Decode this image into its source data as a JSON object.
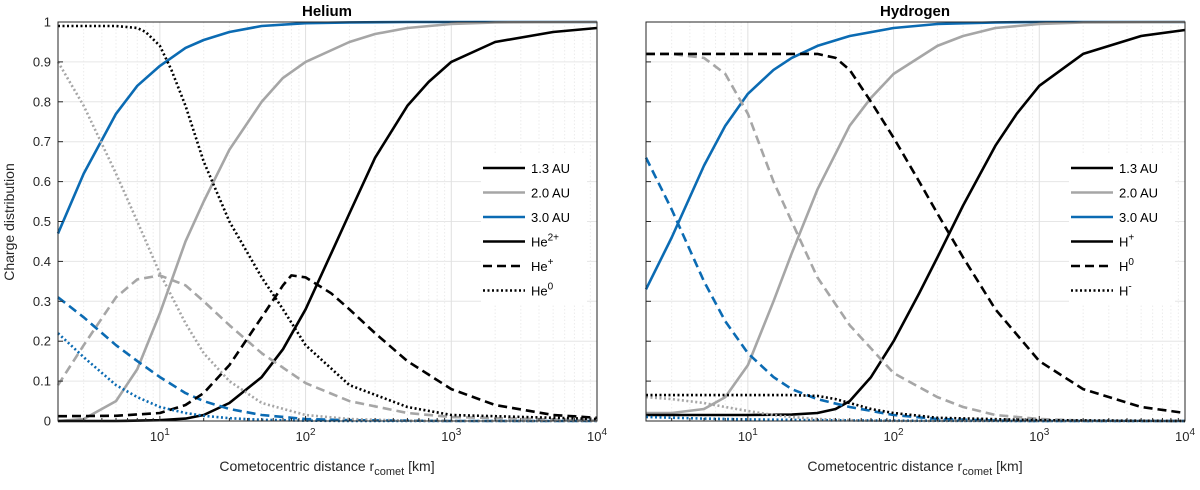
{
  "colors": {
    "1.3 AU": "#000000",
    "2.0 AU": "#a6a6a6",
    "3.0 AU": "#0b6bb3"
  },
  "chart_data": [
    {
      "type": "line",
      "title": "Helium",
      "xlabel": "Cometocentric distance r",
      "xlabel_sub": "comet",
      "xlabel_unit": "[km]",
      "ylabel": "Charge distribution",
      "xscale": "log",
      "xlim": [
        2,
        10000
      ],
      "ylim": [
        0,
        1
      ],
      "xticks": [
        {
          "base": "10",
          "exp": "1",
          "value": 10
        },
        {
          "base": "10",
          "exp": "2",
          "value": 100
        },
        {
          "base": "10",
          "exp": "3",
          "value": 1000
        },
        {
          "base": "10",
          "exp": "4",
          "value": 10000
        }
      ],
      "yticks": [
        "0",
        "0.1",
        "0.2",
        "0.3",
        "0.4",
        "0.5",
        "0.6",
        "0.7",
        "0.8",
        "0.9",
        "1"
      ],
      "grid": true,
      "legend_position": "right",
      "legend": [
        {
          "base": "1.3 AU",
          "sup": "",
          "color": "#000000",
          "style": "solid"
        },
        {
          "base": "2.0 AU",
          "sup": "",
          "color": "#a6a6a6",
          "style": "solid"
        },
        {
          "base": "3.0 AU",
          "sup": "",
          "color": "#0b6bb3",
          "style": "solid"
        },
        {
          "base": "He",
          "sup": "2+",
          "color": "#000000",
          "style": "solid"
        },
        {
          "base": "He",
          "sup": "+",
          "color": "#000000",
          "style": "dashed"
        },
        {
          "base": "He",
          "sup": "0",
          "color": "#000000",
          "style": "dotted"
        }
      ],
      "series": [
        {
          "name": "He2+ 3.0 AU",
          "color": "#0b6bb3",
          "style": "solid",
          "x": [
            2,
            3,
            5,
            7,
            10,
            15,
            20,
            30,
            50,
            100,
            200,
            500,
            1000,
            10000
          ],
          "y": [
            0.47,
            0.62,
            0.77,
            0.84,
            0.89,
            0.935,
            0.955,
            0.975,
            0.99,
            0.997,
            0.999,
            1,
            1,
            1
          ]
        },
        {
          "name": "He2+ 2.0 AU",
          "color": "#a6a6a6",
          "style": "solid",
          "x": [
            2,
            3,
            5,
            7,
            10,
            15,
            20,
            30,
            50,
            70,
            100,
            200,
            300,
            500,
            1000,
            2000,
            10000
          ],
          "y": [
            0,
            0.005,
            0.05,
            0.13,
            0.27,
            0.45,
            0.55,
            0.68,
            0.8,
            0.86,
            0.9,
            0.95,
            0.97,
            0.985,
            0.995,
            0.999,
            1
          ]
        },
        {
          "name": "He2+ 1.3 AU",
          "color": "#000000",
          "style": "solid",
          "x": [
            2,
            5,
            10,
            15,
            20,
            30,
            50,
            70,
            100,
            150,
            200,
            300,
            500,
            700,
            1000,
            2000,
            5000,
            10000
          ],
          "y": [
            0,
            0,
            0.002,
            0.006,
            0.015,
            0.045,
            0.11,
            0.18,
            0.28,
            0.42,
            0.52,
            0.66,
            0.79,
            0.85,
            0.9,
            0.95,
            0.975,
            0.985
          ]
        },
        {
          "name": "He+ 3.0 AU",
          "color": "#0b6bb3",
          "style": "dashed",
          "x": [
            2,
            3,
            5,
            7,
            10,
            15,
            20,
            30,
            50,
            100,
            200,
            500,
            1000,
            10000
          ],
          "y": [
            0.31,
            0.26,
            0.19,
            0.15,
            0.11,
            0.07,
            0.05,
            0.03,
            0.015,
            0.005,
            0.002,
            0.001,
            0,
            0
          ]
        },
        {
          "name": "He+ 2.0 AU",
          "color": "#a6a6a6",
          "style": "dashed",
          "x": [
            2,
            3,
            5,
            7,
            10,
            15,
            20,
            30,
            50,
            100,
            200,
            500,
            1000,
            10000
          ],
          "y": [
            0.09,
            0.19,
            0.31,
            0.355,
            0.365,
            0.34,
            0.3,
            0.24,
            0.17,
            0.095,
            0.05,
            0.02,
            0.01,
            0.001
          ]
        },
        {
          "name": "He+ 1.3 AU",
          "color": "#000000",
          "style": "dashed",
          "x": [
            2,
            5,
            10,
            15,
            20,
            30,
            50,
            70,
            80,
            100,
            150,
            200,
            300,
            500,
            1000,
            2000,
            5000,
            10000
          ],
          "y": [
            0.012,
            0.013,
            0.02,
            0.04,
            0.07,
            0.14,
            0.26,
            0.34,
            0.365,
            0.36,
            0.32,
            0.28,
            0.22,
            0.15,
            0.08,
            0.04,
            0.015,
            0.008
          ]
        },
        {
          "name": "He0 3.0 AU",
          "color": "#0b6bb3",
          "style": "dotted",
          "x": [
            2,
            3,
            5,
            7,
            10,
            15,
            20,
            30,
            50,
            100,
            200,
            1000,
            10000
          ],
          "y": [
            0.22,
            0.16,
            0.09,
            0.06,
            0.035,
            0.02,
            0.013,
            0.007,
            0.003,
            0.001,
            0,
            0,
            0
          ]
        },
        {
          "name": "He0 2.0 AU",
          "color": "#a6a6a6",
          "style": "dotted",
          "x": [
            2,
            3,
            5,
            7,
            10,
            15,
            20,
            30,
            50,
            100,
            200,
            500,
            1000,
            10000
          ],
          "y": [
            0.9,
            0.79,
            0.62,
            0.5,
            0.37,
            0.245,
            0.17,
            0.1,
            0.045,
            0.015,
            0.005,
            0.001,
            0,
            0
          ]
        },
        {
          "name": "He0 1.3 AU",
          "color": "#000000",
          "style": "dotted",
          "x": [
            2,
            3,
            5,
            7,
            8,
            10,
            12,
            15,
            20,
            30,
            50,
            70,
            100,
            200,
            500,
            1000,
            10000
          ],
          "y": [
            0.99,
            0.99,
            0.99,
            0.985,
            0.975,
            0.94,
            0.88,
            0.79,
            0.65,
            0.5,
            0.36,
            0.28,
            0.19,
            0.09,
            0.035,
            0.015,
            0.005
          ]
        }
      ]
    },
    {
      "type": "line",
      "title": "Hydrogen",
      "xlabel": "Cometocentric distance r",
      "xlabel_sub": "comet",
      "xlabel_unit": "[km]",
      "xscale": "log",
      "xlim": [
        2,
        10000
      ],
      "ylim": [
        0,
        1
      ],
      "xticks": [
        {
          "base": "10",
          "exp": "1",
          "value": 10
        },
        {
          "base": "10",
          "exp": "2",
          "value": 100
        },
        {
          "base": "10",
          "exp": "3",
          "value": 1000
        },
        {
          "base": "10",
          "exp": "4",
          "value": 10000
        }
      ],
      "grid": true,
      "legend_position": "right",
      "legend": [
        {
          "base": "1.3 AU",
          "sup": "",
          "color": "#000000",
          "style": "solid"
        },
        {
          "base": "2.0 AU",
          "sup": "",
          "color": "#a6a6a6",
          "style": "solid"
        },
        {
          "base": "3.0 AU",
          "sup": "",
          "color": "#0b6bb3",
          "style": "solid"
        },
        {
          "base": "H",
          "sup": "+",
          "color": "#000000",
          "style": "solid"
        },
        {
          "base": "H",
          "sup": "0",
          "color": "#000000",
          "style": "dashed"
        },
        {
          "base": "H",
          "sup": "-",
          "color": "#000000",
          "style": "dotted"
        }
      ],
      "series": [
        {
          "name": "H+ 3.0 AU",
          "color": "#0b6bb3",
          "style": "solid",
          "x": [
            2,
            3,
            5,
            7,
            10,
            15,
            20,
            30,
            50,
            100,
            200,
            500,
            1000,
            10000
          ],
          "y": [
            0.33,
            0.46,
            0.64,
            0.74,
            0.82,
            0.88,
            0.91,
            0.94,
            0.965,
            0.985,
            0.995,
            0.999,
            1,
            1
          ]
        },
        {
          "name": "H+ 2.0 AU",
          "color": "#a6a6a6",
          "style": "solid",
          "x": [
            2,
            3,
            5,
            7,
            10,
            15,
            20,
            30,
            50,
            70,
            100,
            200,
            300,
            500,
            1000,
            2000,
            10000
          ],
          "y": [
            0.02,
            0.02,
            0.03,
            0.06,
            0.14,
            0.3,
            0.42,
            0.58,
            0.74,
            0.81,
            0.87,
            0.94,
            0.965,
            0.985,
            0.995,
            0.999,
            1
          ]
        },
        {
          "name": "H+ 1.3 AU",
          "color": "#000000",
          "style": "solid",
          "x": [
            2,
            10,
            20,
            30,
            40,
            50,
            70,
            100,
            150,
            200,
            300,
            500,
            700,
            1000,
            2000,
            5000,
            10000
          ],
          "y": [
            0.015,
            0.015,
            0.016,
            0.02,
            0.03,
            0.05,
            0.11,
            0.2,
            0.32,
            0.41,
            0.54,
            0.69,
            0.77,
            0.84,
            0.92,
            0.965,
            0.98
          ]
        },
        {
          "name": "H0 3.0 AU",
          "color": "#0b6bb3",
          "style": "dashed",
          "x": [
            2,
            3,
            5,
            7,
            10,
            15,
            20,
            30,
            50,
            100,
            200,
            500,
            1000,
            10000
          ],
          "y": [
            0.66,
            0.53,
            0.35,
            0.25,
            0.17,
            0.11,
            0.08,
            0.055,
            0.035,
            0.015,
            0.005,
            0.001,
            0,
            0
          ]
        },
        {
          "name": "H0 2.0 AU",
          "color": "#a6a6a6",
          "style": "dashed",
          "x": [
            2,
            3,
            5,
            7,
            10,
            15,
            20,
            30,
            50,
            100,
            200,
            300,
            500,
            1000,
            2000,
            10000
          ],
          "y": [
            0.92,
            0.92,
            0.91,
            0.87,
            0.77,
            0.6,
            0.5,
            0.36,
            0.24,
            0.12,
            0.06,
            0.035,
            0.015,
            0.005,
            0.001,
            0
          ]
        },
        {
          "name": "H0 1.3 AU",
          "color": "#000000",
          "style": "dashed",
          "x": [
            2,
            5,
            10,
            20,
            30,
            40,
            50,
            70,
            100,
            150,
            200,
            300,
            500,
            1000,
            2000,
            5000,
            10000
          ],
          "y": [
            0.92,
            0.92,
            0.92,
            0.92,
            0.92,
            0.91,
            0.88,
            0.8,
            0.71,
            0.6,
            0.52,
            0.41,
            0.28,
            0.15,
            0.08,
            0.035,
            0.02
          ]
        },
        {
          "name": "H- 3.0 AU",
          "color": "#0b6bb3",
          "style": "dotted",
          "x": [
            2,
            5,
            10,
            30,
            100,
            1000,
            10000
          ],
          "y": [
            0.01,
            0.006,
            0.004,
            0.002,
            0.001,
            0,
            0
          ]
        },
        {
          "name": "H- 2.0 AU",
          "color": "#a6a6a6",
          "style": "dotted",
          "x": [
            2,
            3,
            5,
            7,
            10,
            15,
            20,
            30,
            50,
            100,
            10000
          ],
          "y": [
            0.06,
            0.055,
            0.045,
            0.035,
            0.025,
            0.015,
            0.01,
            0.005,
            0.002,
            0,
            0
          ]
        },
        {
          "name": "H- 1.3 AU",
          "color": "#000000",
          "style": "dotted",
          "x": [
            2,
            5,
            10,
            20,
            30,
            40,
            50,
            70,
            100,
            200,
            1000,
            10000
          ],
          "y": [
            0.065,
            0.065,
            0.065,
            0.065,
            0.063,
            0.055,
            0.045,
            0.03,
            0.02,
            0.008,
            0.002,
            0
          ]
        }
      ]
    }
  ]
}
